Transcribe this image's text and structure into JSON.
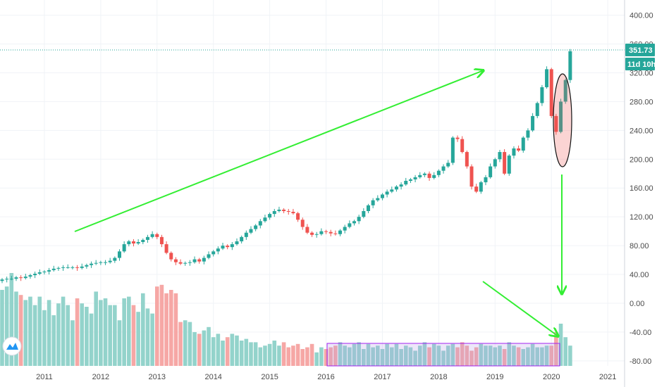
{
  "chart_data": {
    "type": "candlestick",
    "timeframe": "monthly",
    "x_range": [
      "2010-04",
      "2021-02"
    ],
    "y_range": [
      -84,
      420
    ],
    "y_ticks": [
      400,
      360,
      320,
      280,
      240,
      200,
      160,
      120,
      80,
      40,
      0,
      -40,
      -80
    ],
    "y_tick_labels": [
      "400.00",
      "360.00",
      "320.00",
      "280.00",
      "240.00",
      "200.00",
      "160.00",
      "120.00",
      "80.00",
      "40.00",
      "0.00",
      "-40.00",
      "-80.00"
    ],
    "x_ticks": [
      "2011",
      "2012",
      "2013",
      "2014",
      "2015",
      "2016",
      "2017",
      "2018",
      "2019",
      "2020",
      "2021"
    ],
    "grid": true,
    "colors": {
      "up": "#26a69a",
      "down": "#ef5350",
      "annotation": "#33ee33",
      "range_box": "#a020f0",
      "ellipse": "#e53935",
      "badge": "#26a69a"
    },
    "last_price": 351.73,
    "last_price_label": "351.73",
    "countdown_label": "11d 10h",
    "closes": [
      33,
      34,
      34,
      36,
      35,
      37,
      39,
      41,
      43,
      44,
      46,
      48,
      49,
      50,
      50,
      50,
      49,
      51,
      53,
      55,
      56,
      57,
      57,
      59,
      63,
      72,
      82,
      86,
      83,
      85,
      88,
      92,
      96,
      92,
      82,
      70,
      61,
      57,
      55,
      56,
      57,
      61,
      58,
      63,
      68,
      72,
      76,
      80,
      78,
      82,
      86,
      92,
      98,
      103,
      108,
      114,
      119,
      124,
      128,
      130,
      128,
      127,
      125,
      116,
      106,
      98,
      95,
      96,
      100,
      99,
      97,
      96,
      101,
      106,
      111,
      114,
      120,
      128,
      136,
      143,
      146,
      151,
      155,
      158,
      162,
      165,
      170,
      172,
      175,
      178,
      180,
      174,
      178,
      184,
      190,
      195,
      230,
      228,
      210,
      190,
      162,
      155,
      168,
      175,
      190,
      200,
      210,
      180,
      205,
      215,
      212,
      230,
      240,
      260,
      278,
      300,
      325,
      260,
      238,
      280,
      310,
      350
    ],
    "volumes": [
      45,
      47,
      55,
      44,
      42,
      39,
      41,
      36,
      41,
      33,
      39,
      30,
      37,
      41,
      36,
      27,
      40,
      37,
      35,
      31,
      44,
      39,
      40,
      36,
      36,
      27,
      40,
      41,
      36,
      32,
      43,
      34,
      31,
      47,
      48,
      43,
      45,
      43,
      26,
      27,
      26,
      20,
      19,
      21,
      23,
      17,
      19,
      15,
      17,
      19,
      18,
      15,
      16,
      14,
      14,
      11,
      12,
      13,
      15,
      12,
      14,
      11,
      12,
      13,
      10,
      11,
      13,
      8,
      11,
      10,
      11,
      12,
      14,
      12,
      11,
      13,
      14,
      10,
      13,
      11,
      12,
      10,
      13,
      11,
      13,
      10,
      12,
      11,
      9,
      12,
      14,
      11,
      13,
      12,
      9,
      12,
      13,
      11,
      14,
      12,
      9,
      11,
      13,
      12,
      12,
      11,
      12,
      10,
      14,
      12,
      11,
      10,
      11,
      13,
      11,
      11,
      12,
      12,
      20,
      25,
      17,
      12
    ]
  }
}
